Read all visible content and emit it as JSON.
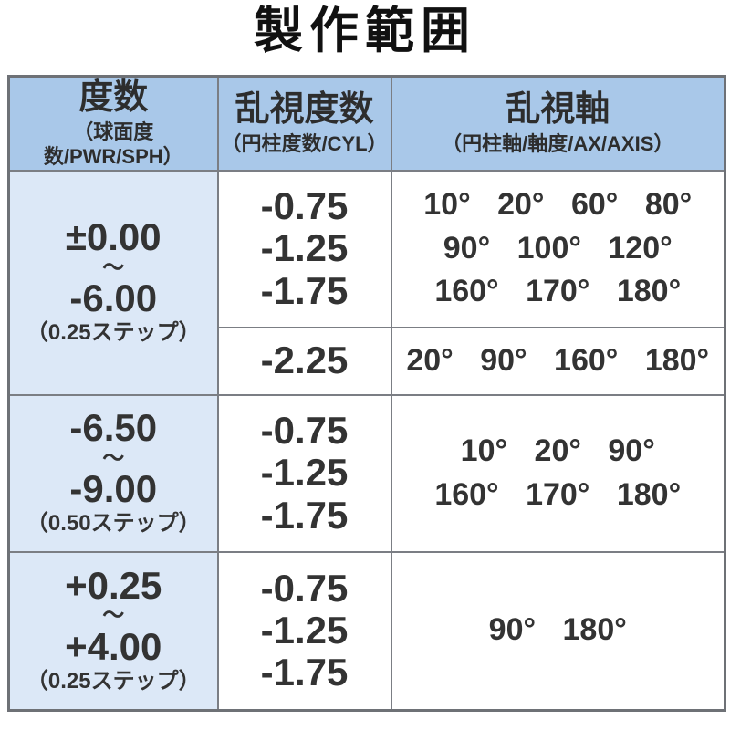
{
  "title": "製作範囲",
  "table": {
    "headers": {
      "power": {
        "main": "度数",
        "sub": "（球面度数/PWR/SPH）"
      },
      "cylinder": {
        "main": "乱視度数",
        "sub": "（円柱度数/CYL）"
      },
      "axis": {
        "main": "乱視軸",
        "sub": "（円柱軸/軸度/AX/AXIS）"
      }
    },
    "rows": [
      {
        "power": {
          "from": "±0.00",
          "tilde": "～",
          "to": "-6.00",
          "step": "（0.25ステップ）"
        },
        "cyl": [
          "-0.75",
          "-1.25",
          "-1.75"
        ],
        "axis": [
          "10° 20° 60° 80°",
          "90° 100° 120°",
          "160° 170° 180°"
        ]
      },
      {
        "cyl": [
          "-2.25"
        ],
        "axis": [
          "20° 90° 160° 180°"
        ]
      },
      {
        "power": {
          "from": "-6.50",
          "tilde": "～",
          "to": "-9.00",
          "step": "（0.50ステップ）"
        },
        "cyl": [
          "-0.75",
          "-1.25",
          "-1.75"
        ],
        "axis": [
          "10° 20° 90°",
          "160° 170° 180°"
        ]
      },
      {
        "power": {
          "from": "+0.25",
          "tilde": "～",
          "to": "+4.00",
          "step": "（0.25ステップ）"
        },
        "cyl": [
          "-0.75",
          "-1.25",
          "-1.75"
        ],
        "axis": [
          "90° 180°"
        ]
      }
    ],
    "colors": {
      "header_bg": "#a9c8e9",
      "power_col_bg": "#dce8f7",
      "border": "#7b7e84",
      "outer_border": "#6e7176",
      "text": "#333333",
      "title_color": "#111111"
    }
  }
}
